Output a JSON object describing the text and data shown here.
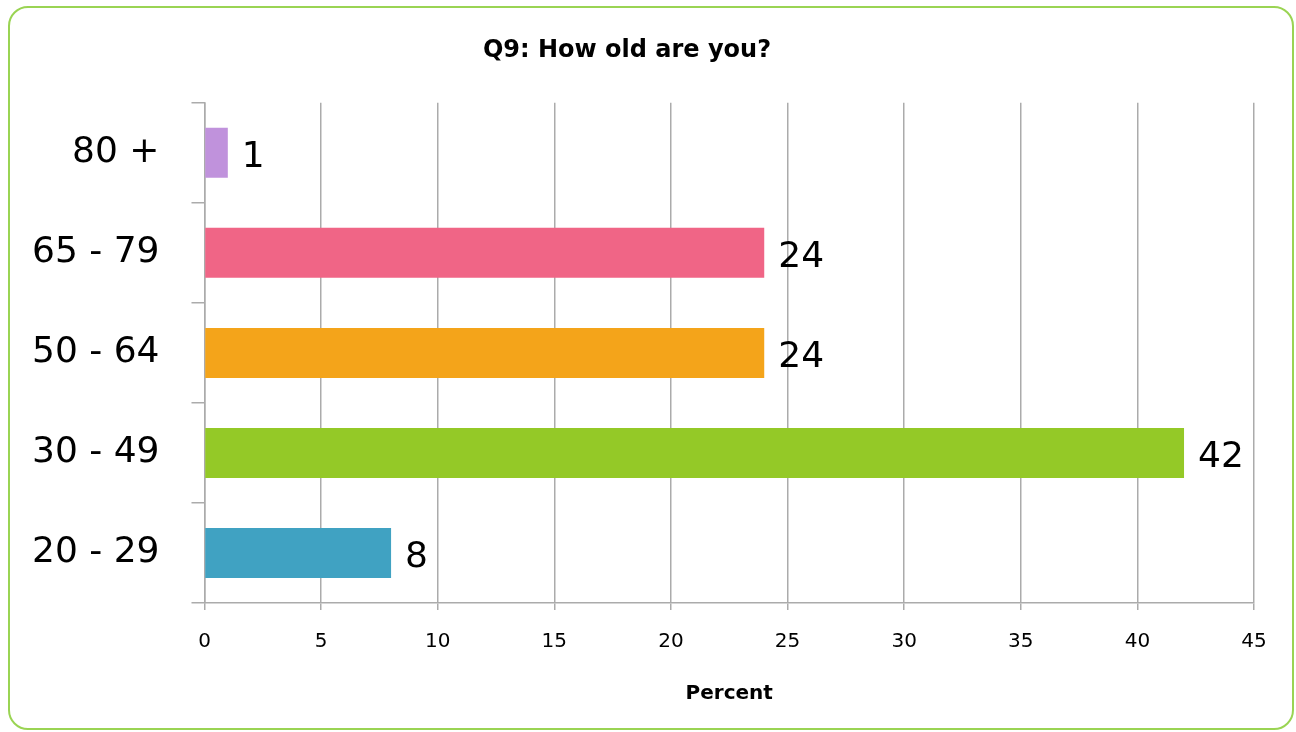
{
  "chart_data": {
    "type": "bar",
    "orientation": "horizontal",
    "title": "Q9: How old are you?",
    "xlabel": "Percent",
    "categories": [
      "80 +",
      "65 - 79",
      "50 - 64",
      "30 - 49",
      "20 - 29"
    ],
    "values": [
      1,
      24,
      24,
      42,
      8
    ],
    "colors": [
      "#c092dc",
      "#f06586",
      "#f4a41a",
      "#94c927",
      "#40a2c2"
    ],
    "xlim": [
      0,
      45
    ],
    "xticks": [
      0,
      5,
      10,
      15,
      20,
      25,
      30,
      35,
      40,
      45
    ],
    "grid": "x",
    "data_labels": true,
    "legend": false
  }
}
